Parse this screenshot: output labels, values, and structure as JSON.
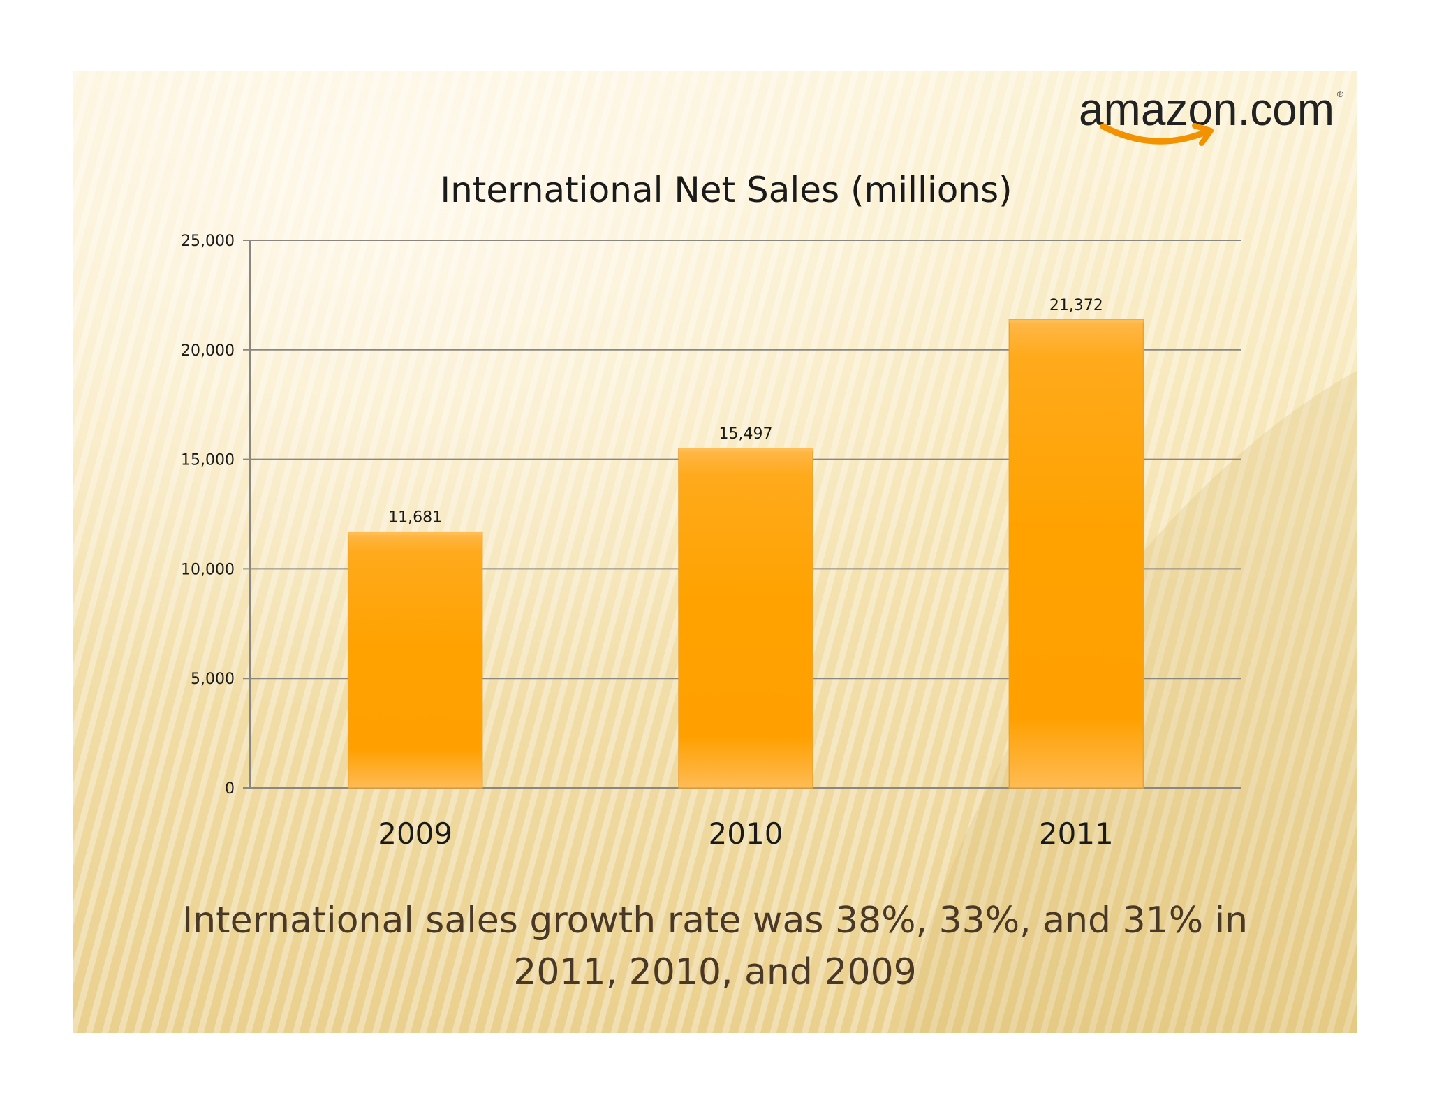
{
  "logo": {
    "text": "amazon.com",
    "registered": "®"
  },
  "caption": {
    "line1": "International sales growth rate was 38%, 33%, and 31% in",
    "line2": "2011, 2010, and 2009"
  },
  "colors": {
    "bar": "#ffa500",
    "bar_light": "#ffbe55",
    "grid": "#8a8680",
    "text": "#1a1a1a",
    "caption": "#4a3826",
    "logo_text": "#222222",
    "logo_smile": "#f39200"
  },
  "chart_data": {
    "type": "bar",
    "title": "International Net Sales (millions)",
    "categories": [
      "2009",
      "2010",
      "2011"
    ],
    "values": [
      11681,
      15497,
      21372
    ],
    "value_labels": [
      "11,681",
      "15,497",
      "21,372"
    ],
    "ylim": [
      0,
      25000
    ],
    "yticks": [
      0,
      5000,
      10000,
      15000,
      20000,
      25000
    ],
    "ytick_labels": [
      "0",
      "5,000",
      "10,000",
      "15,000",
      "20,000",
      "25,000"
    ],
    "xlabel": "",
    "ylabel": "",
    "grid": true,
    "legend": "none"
  }
}
